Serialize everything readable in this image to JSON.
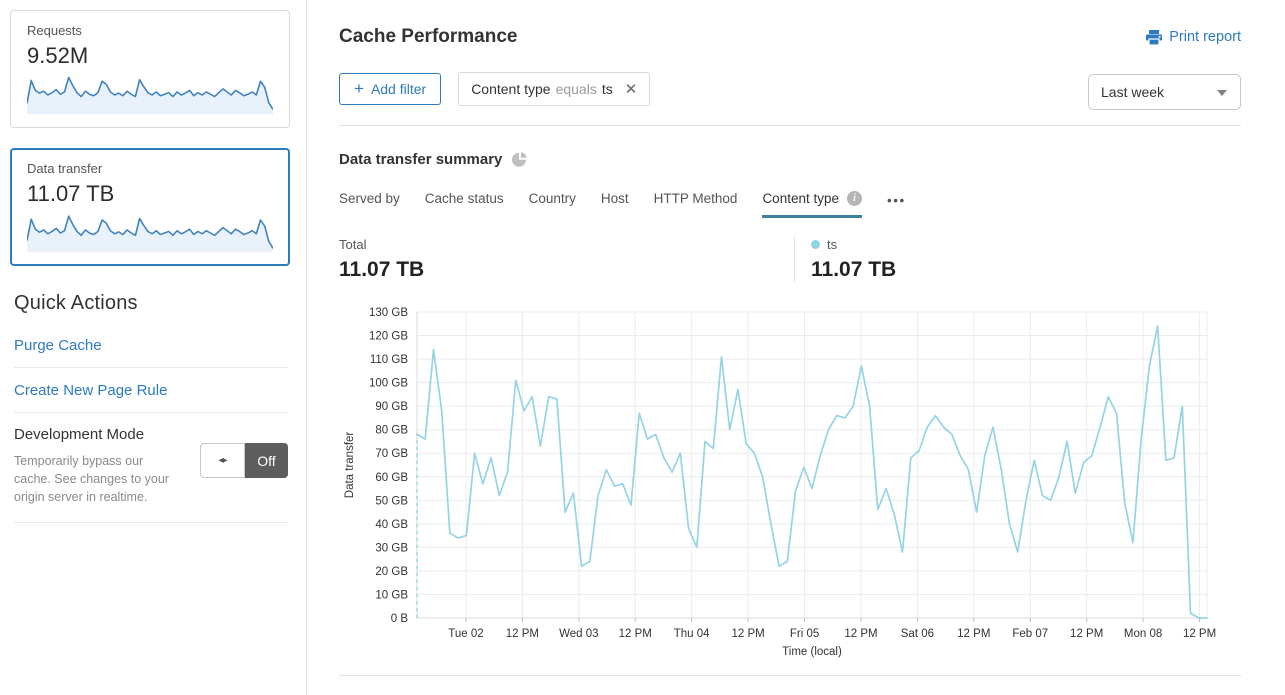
{
  "colors": {
    "link_blue": "#2c7bbf",
    "spark_line": "#3e82c0",
    "spark_fill": "#e9f2fa",
    "chart_line": "#95d4e5",
    "tab_underline": "#3f7f9e",
    "toggle_off_bg": "#5d5d5d",
    "grid": "#ececec"
  },
  "sidebar": {
    "cards": [
      {
        "label": "Requests",
        "value": "9.52M",
        "spark": [
          28,
          88,
          62,
          55,
          60,
          50,
          56,
          64,
          52,
          58,
          96,
          74,
          56,
          46,
          60,
          52,
          48,
          56,
          86,
          78,
          58,
          50,
          55,
          48,
          60,
          52,
          46,
          90,
          72,
          56,
          50,
          58,
          48,
          52,
          56,
          46,
          58,
          50,
          55,
          62,
          48,
          56,
          50,
          58,
          52,
          46,
          56,
          66,
          58,
          50,
          62,
          56,
          48,
          52,
          58,
          50,
          86,
          70,
          30,
          12
        ]
      },
      {
        "label": "Data transfer",
        "value": "11.07 TB",
        "selected": true,
        "spark": [
          30,
          86,
          60,
          52,
          58,
          48,
          54,
          62,
          50,
          56,
          94,
          72,
          54,
          44,
          58,
          50,
          46,
          54,
          84,
          76,
          56,
          48,
          53,
          46,
          58,
          50,
          44,
          88,
          70,
          54,
          48,
          56,
          46,
          50,
          54,
          44,
          56,
          48,
          53,
          60,
          46,
          54,
          48,
          56,
          50,
          44,
          54,
          64,
          56,
          48,
          60,
          54,
          46,
          50,
          56,
          48,
          84,
          68,
          28,
          10
        ]
      }
    ],
    "quick_actions": {
      "title": "Quick Actions",
      "links": [
        "Purge Cache",
        "Create New Page Rule"
      ],
      "dev_mode": {
        "label": "Development Mode",
        "description": "Temporarily bypass our cache. See changes to your origin server in realtime.",
        "toggle_icon": "◂▸",
        "toggle_state": "Off"
      }
    }
  },
  "header": {
    "title": "Cache Performance",
    "print_label": "Print report",
    "add_filter": {
      "plus": "+",
      "label": "Add filter"
    },
    "filter_chip": {
      "field": "Content type",
      "operator": "equals",
      "value": "ts",
      "close_icon": "✕"
    },
    "time_range": "Last week"
  },
  "summary": {
    "title": "Data transfer summary",
    "tabs": [
      {
        "label": "Served by"
      },
      {
        "label": "Cache status"
      },
      {
        "label": "Country"
      },
      {
        "label": "Host"
      },
      {
        "label": "HTTP Method"
      },
      {
        "label": "Content type",
        "active": true,
        "info": true
      }
    ],
    "more_icon": "•••",
    "total_label": "Total",
    "total_value": "11.07 TB",
    "legend": {
      "series": "ts",
      "value": "11.07 TB",
      "color": "#8fd2e4"
    }
  },
  "chart_data": {
    "type": "line",
    "title": "Data transfer summary",
    "xlabel": "Time (local)",
    "ylabel": "Data transfer",
    "ylim": [
      0,
      130
    ],
    "grid": true,
    "legend_position": "top-right-above-chart",
    "y_ticks": [
      {
        "value": 0,
        "label": "0 B"
      },
      {
        "value": 10,
        "label": "10 GB"
      },
      {
        "value": 20,
        "label": "20 GB"
      },
      {
        "value": 30,
        "label": "30 GB"
      },
      {
        "value": 40,
        "label": "40 GB"
      },
      {
        "value": 50,
        "label": "50 GB"
      },
      {
        "value": 60,
        "label": "60 GB"
      },
      {
        "value": 70,
        "label": "70 GB"
      },
      {
        "value": 80,
        "label": "80 GB"
      },
      {
        "value": 90,
        "label": "90 GB"
      },
      {
        "value": 100,
        "label": "100 GB"
      },
      {
        "value": 110,
        "label": "110 GB"
      },
      {
        "value": 120,
        "label": "120 GB"
      },
      {
        "value": 130,
        "label": "130 GB"
      }
    ],
    "x_ticks": [
      {
        "label": "Tue 02",
        "pos": 0.062
      },
      {
        "label": "12 PM",
        "pos": 0.1334
      },
      {
        "label": "Wed 03",
        "pos": 0.2049
      },
      {
        "label": "12 PM",
        "pos": 0.2763
      },
      {
        "label": "Thu 04",
        "pos": 0.3477
      },
      {
        "label": "12 PM",
        "pos": 0.4191
      },
      {
        "label": "Fri 05",
        "pos": 0.4906
      },
      {
        "label": "12 PM",
        "pos": 0.562
      },
      {
        "label": "Sat 06",
        "pos": 0.6334
      },
      {
        "label": "12 PM",
        "pos": 0.7048
      },
      {
        "label": "Feb 07",
        "pos": 0.7763
      },
      {
        "label": "12 PM",
        "pos": 0.8477
      },
      {
        "label": "Mon 08",
        "pos": 0.9191
      },
      {
        "label": "12 PM",
        "pos": 0.9906
      }
    ],
    "series": [
      {
        "name": "ts",
        "color": "#95d4e5",
        "unit": "GB",
        "interval_hours": 2,
        "total": "11.07 TB",
        "leading_dashed_marker": true,
        "values": [
          78,
          76,
          114,
          88,
          36,
          34,
          35,
          70,
          57,
          68,
          52,
          62,
          101,
          88,
          94,
          73,
          94,
          93,
          45,
          53,
          22,
          24,
          52,
          63,
          56,
          57,
          48,
          87,
          76,
          78,
          68,
          62,
          70,
          38,
          30,
          75,
          72,
          111,
          80,
          97,
          74,
          70,
          60,
          40,
          22,
          24,
          54,
          64,
          55,
          69,
          80,
          86,
          85,
          90,
          107,
          90,
          46,
          55,
          44,
          28,
          68,
          71,
          81,
          86,
          81,
          78,
          69,
          63,
          45,
          69,
          81,
          63,
          40,
          28,
          50,
          67,
          52,
          50,
          60,
          75,
          53,
          66,
          69,
          81,
          94,
          87,
          49,
          32,
          76,
          107,
          124,
          67,
          68,
          90,
          2,
          0,
          0
        ]
      }
    ]
  }
}
